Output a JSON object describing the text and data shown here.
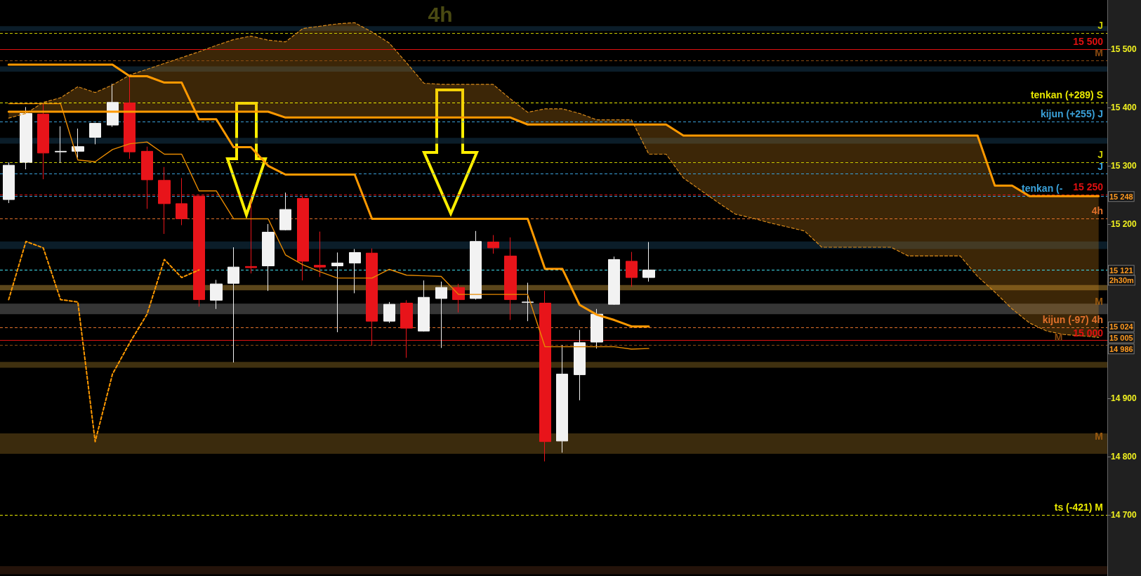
{
  "chart_data": {
    "type": "candlestick",
    "title": "4h",
    "categories": [
      null,
      null,
      null,
      null,
      null,
      null,
      null,
      null,
      null,
      null,
      null,
      null,
      null,
      null,
      null,
      null,
      null,
      null,
      null,
      null,
      null,
      null,
      null,
      null,
      null,
      null,
      null,
      null,
      null,
      null,
      null,
      null,
      null,
      null,
      null,
      null,
      null,
      null,
      null,
      null,
      null,
      null,
      null,
      null,
      null,
      null,
      null,
      null,
      null,
      null,
      null,
      null,
      null,
      null,
      null,
      null,
      null,
      null,
      null,
      null,
      null,
      null,
      null,
      null
    ],
    "ohlc": [
      [
        15242,
        15306,
        15236,
        15301
      ],
      [
        15306,
        15401,
        15294,
        15390
      ],
      [
        15389,
        15407,
        15277,
        15322
      ],
      [
        15324,
        15368,
        15305,
        15325
      ],
      [
        15325,
        15364,
        15314,
        15333
      ],
      [
        15349,
        15374,
        15337,
        15373
      ],
      [
        15370,
        15441,
        15367,
        15409
      ],
      [
        15408,
        15453,
        15312,
        15324
      ],
      [
        15325,
        15333,
        15226,
        15276
      ],
      [
        15275,
        15298,
        15183,
        15235
      ],
      [
        15235,
        15279,
        15198,
        15209
      ],
      [
        15248,
        15248,
        15058,
        15070
      ],
      [
        15069,
        15104,
        15054,
        15097
      ],
      [
        15098,
        15160,
        14962,
        15126
      ],
      [
        15127,
        15246,
        15115,
        15125
      ],
      [
        15128,
        15200,
        15085,
        15186
      ],
      [
        15190,
        15254,
        15189,
        15225
      ],
      [
        15244,
        15248,
        15103,
        15136
      ],
      [
        15129,
        15187,
        15109,
        15126
      ],
      [
        15128,
        15151,
        15014,
        15133
      ],
      [
        15133,
        15157,
        15081,
        15151
      ],
      [
        15150,
        15158,
        14991,
        15033
      ],
      [
        15033,
        15066,
        15030,
        15062
      ],
      [
        15064,
        15069,
        14970,
        15021
      ],
      [
        15016,
        15103,
        15015,
        15074
      ],
      [
        15072,
        15101,
        14987,
        15091
      ],
      [
        15091,
        15097,
        15048,
        15070
      ],
      [
        15072,
        15188,
        15070,
        15170
      ],
      [
        15169,
        15181,
        15149,
        15159
      ],
      [
        15145,
        15177,
        15035,
        15070
      ],
      [
        15065,
        15099,
        15033,
        15066
      ],
      [
        15064,
        15085,
        14792,
        14826
      ],
      [
        14827,
        14992,
        14807,
        14942
      ],
      [
        14941,
        15018,
        14897,
        14996
      ],
      [
        14997,
        15054,
        14986,
        15045
      ],
      [
        15062,
        15144,
        15061,
        15139
      ],
      [
        15136,
        15152,
        15092,
        15108
      ],
      [
        15108,
        15169,
        15101,
        15121
      ],
      null,
      null,
      null,
      null,
      null,
      null,
      null,
      null,
      null,
      null,
      null,
      null,
      null,
      null,
      null,
      null,
      null,
      null,
      null,
      null,
      null,
      null,
      null,
      null,
      null,
      null
    ],
    "colors": [
      "#f2f2f2",
      "#f2f2f2",
      "#e8141a",
      "#f2f2f2",
      "#f2f2f2",
      "#f2f2f2",
      "#f2f2f2",
      "#e8141a",
      "#e8141a",
      "#e8141a",
      "#e8141a",
      "#e8141a",
      "#f2f2f2",
      "#f2f2f2",
      "#e8141a",
      "#f2f2f2",
      "#f2f2f2",
      "#e8141a",
      "#e8141a",
      "#f2f2f2",
      "#f2f2f2",
      "#e8141a",
      "#f2f2f2",
      "#e8141a",
      "#f2f2f2",
      "#f2f2f2",
      "#e8141a",
      "#f2f2f2",
      "#e8141a",
      "#e8141a",
      "#f2f2f2",
      "#e8141a",
      "#f2f2f2",
      "#f2f2f2",
      "#f2f2f2",
      "#f2f2f2",
      "#e8141a",
      "#f2f2f2",
      null,
      null,
      null,
      null,
      null,
      null,
      null,
      null,
      null,
      null,
      null,
      null,
      null,
      null,
      null,
      null,
      null,
      null,
      null,
      null,
      null,
      null,
      null,
      null,
      null,
      null
    ],
    "series": [
      {
        "type": "line",
        "color": "#ff9900",
        "values": [
          15474,
          15474,
          15474,
          15474,
          15474,
          15474,
          15474,
          15454,
          15454,
          15443,
          15443,
          15380,
          15380,
          15332,
          15332,
          15300,
          15285,
          15285,
          15285,
          15285,
          15285,
          15209,
          15209,
          15209,
          15209,
          15209,
          15209,
          15209,
          15209,
          15209,
          15209,
          15123,
          15123,
          15061,
          15044,
          15035,
          15024,
          15024,
          null,
          null,
          null,
          null,
          null,
          null,
          null,
          null,
          null,
          null,
          null,
          null,
          null,
          null,
          null,
          null,
          null,
          null,
          null,
          null,
          null,
          null,
          null,
          null,
          null,
          null
        ]
      },
      {
        "type": "line",
        "color": "#e88a00",
        "values": [
          15407,
          15407,
          15407,
          15407,
          15310,
          15307,
          15328,
          15338,
          15341,
          15320,
          15320,
          15257,
          15257,
          15209,
          15209,
          15209,
          15147,
          15130,
          15118,
          15107,
          15107,
          15107,
          15122,
          15112,
          15111,
          15110,
          15079,
          15079,
          15079,
          15079,
          15079,
          14989,
          14989,
          14989,
          14989,
          14989,
          14985,
          14986,
          null,
          null,
          null,
          null,
          null,
          null,
          null,
          null,
          null,
          null,
          null,
          null,
          null,
          null,
          null,
          null,
          null,
          null,
          null,
          null,
          null,
          null,
          null,
          null,
          null,
          null
        ]
      },
      {
        "type": "line",
        "color": "#ff9900",
        "line_style": "dashed",
        "values": [
          15070,
          15170,
          15159,
          15070,
          15066,
          14826,
          14942,
          14996,
          15045,
          15139,
          15108,
          15121,
          null,
          null,
          null,
          null,
          null,
          null,
          null,
          null,
          null,
          null,
          null,
          null,
          null,
          null,
          null,
          null,
          null,
          null,
          null,
          null,
          null,
          null,
          null,
          null,
          null,
          null,
          null,
          null,
          null,
          null,
          null,
          null,
          null,
          null,
          null,
          null,
          null,
          null,
          null,
          null,
          null,
          null,
          null,
          null,
          null,
          null,
          null,
          null,
          null,
          null,
          null,
          null
        ]
      },
      {
        "type": "line",
        "color": "#d98a1a",
        "line_style": "dashed",
        "values": [
          15382,
          15390,
          15409,
          15417,
          15436,
          15426,
          15439,
          15456,
          15466,
          15476,
          15486,
          15496,
          15507,
          15517,
          15523,
          15516,
          15513,
          15536,
          15540,
          15544,
          15546,
          15530,
          15511,
          15477,
          15442,
          15440,
          15440,
          15440,
          15440,
          15415,
          15392,
          15398,
          15398,
          15390,
          15379,
          15379,
          15379,
          15320,
          15320,
          15279,
          15258,
          15237,
          15217,
          15210,
          15202,
          15195,
          15188,
          15160,
          15160,
          15160,
          15160,
          15160,
          15145,
          15145,
          15145,
          15145,
          15110,
          15083,
          15054,
          15030,
          15016,
          15010,
          15008,
          15005
        ],
        "upper": [
          15382,
          15390,
          15409,
          15417,
          15436,
          15426,
          15439,
          15456,
          15466,
          15476,
          15486,
          15496,
          15507,
          15517,
          15523,
          15516,
          15513,
          15536,
          15540,
          15544,
          15546,
          15530,
          15511,
          15477,
          15442,
          15440,
          15440,
          15440,
          15440,
          15415,
          15392,
          15398,
          15398,
          15390,
          15379,
          15379,
          15379,
          15320,
          15320,
          15279,
          15258,
          15237,
          15217,
          15210,
          15202,
          15195,
          15188,
          15160,
          15160,
          15160,
          15160,
          15160,
          15145,
          15145,
          15145,
          15145,
          15110,
          15083,
          15054,
          15030,
          15016,
          15010,
          15008,
          15005
        ],
        "lower": [
          15393,
          15393,
          15393,
          15393,
          15393,
          15393,
          15393,
          15393,
          15393,
          15393,
          15393,
          15393,
          15393,
          15393,
          15393,
          15393,
          15383,
          15383,
          15383,
          15383,
          15383,
          15383,
          15383,
          15383,
          15383,
          15383,
          15383,
          15383,
          15383,
          15383,
          15371,
          15371,
          15371,
          15371,
          15371,
          15371,
          15371,
          15371,
          15371,
          15352,
          15352,
          15352,
          15352,
          15352,
          15352,
          15352,
          15352,
          15352,
          15352,
          15352,
          15352,
          15352,
          15352,
          15352,
          15352,
          15352,
          15352,
          15266,
          15266,
          15248,
          15248,
          15248,
          15248,
          15248
        ]
      },
      {
        "type": "line",
        "color": "#ff9900",
        "values": [
          15393,
          15393,
          15393,
          15393,
          15393,
          15393,
          15393,
          15393,
          15393,
          15393,
          15393,
          15393,
          15393,
          15393,
          15393,
          15393,
          15383,
          15383,
          15383,
          15383,
          15383,
          15383,
          15383,
          15383,
          15383,
          15383,
          15383,
          15383,
          15383,
          15383,
          15371,
          15371,
          15371,
          15371,
          15371,
          15371,
          15371,
          15371,
          15371,
          15352,
          15352,
          15352,
          15352,
          15352,
          15352,
          15352,
          15352,
          15352,
          15352,
          15352,
          15352,
          15352,
          15352,
          15352,
          15352,
          15352,
          15352,
          15266,
          15266,
          15248,
          15248,
          15248,
          15248,
          15248
        ]
      }
    ],
    "ref_lines": [
      {
        "axis": "y",
        "value": 15528,
        "label": "J",
        "color": "#c8c800",
        "line_style": "dashed"
      },
      {
        "axis": "y",
        "value": 15500,
        "label": "15 500",
        "color": "#e01010",
        "line_style": "solid"
      },
      {
        "axis": "y",
        "value": 15481,
        "label": "M",
        "color": "#8a4a10",
        "line_style": "dashed"
      },
      {
        "axis": "y",
        "value": 15409,
        "label": "tenkan (+289) S",
        "color": "#e8e800",
        "line_style": "dashed"
      },
      {
        "axis": "y",
        "value": 15376,
        "label": "kijun (+255) J",
        "color": "#3aa0d8",
        "line_style": "dashed"
      },
      {
        "axis": "y",
        "value": 15306,
        "label": "J",
        "color": "#c8c800",
        "line_style": "dashed"
      },
      {
        "axis": "y",
        "value": 15286,
        "label": "J",
        "color": "#3aa0d8",
        "line_style": "dashed"
      },
      {
        "axis": "y",
        "value": 15250,
        "label": "15 250",
        "color": "#e01010",
        "line_style": "dashed"
      },
      {
        "axis": "y",
        "value": 15248,
        "label": "tenkan (-",
        "color": "#3aa0d8",
        "line_style": "dashed"
      },
      {
        "axis": "y",
        "value": 15209,
        "label": "4h",
        "color": "#e0702a",
        "line_style": "dashed"
      },
      {
        "axis": "y",
        "value": 15121,
        "color": "#40e0f0",
        "line_style": "dashed"
      },
      {
        "axis": "y",
        "value": 15022,
        "label": "kijun (-97) 4h",
        "color": "#e0702a",
        "line_style": "dashed"
      },
      {
        "axis": "y",
        "value": 15000,
        "label": "15 000",
        "color": "#e01010",
        "line_style": "solid"
      },
      {
        "axis": "y",
        "value": 14992,
        "label": "M",
        "color": "#8a4a10",
        "line_style": "dashed"
      },
      {
        "axis": "y",
        "value": 14700,
        "label": "ts (-421) M",
        "color": "#e8e800",
        "line_style": "dashed"
      }
    ],
    "bands": [
      {
        "axis": "y",
        "from": 15532,
        "to": 15540,
        "color": "#0d2230"
      },
      {
        "axis": "y",
        "from": 15462,
        "to": 15471,
        "color": "#0d2230"
      },
      {
        "axis": "y",
        "from": 15338,
        "to": 15348,
        "color": "#0d2230"
      },
      {
        "axis": "y",
        "from": 15157,
        "to": 15170,
        "color": "#0d2230"
      },
      {
        "axis": "y",
        "from": 15086,
        "to": 15095,
        "color": "#6b5220"
      },
      {
        "axis": "y",
        "from": 15045,
        "to": 15063,
        "label": "M",
        "color": "#404040"
      },
      {
        "axis": "y",
        "from": 14953,
        "to": 14963,
        "color": "#4a3812"
      },
      {
        "axis": "y",
        "from": 14805,
        "to": 14840,
        "label": "M",
        "color": "#45320f"
      },
      {
        "axis": "y",
        "from": 14598,
        "to": 14612,
        "color": "#2a160c"
      }
    ],
    "annotations": [
      {
        "text": "15 248",
        "y": 15248
      },
      {
        "text": "15 121",
        "y": 15121
      },
      {
        "text": "2h30m",
        "y": 15104
      },
      {
        "text": "15 024",
        "y": 15024
      },
      {
        "text": "15 005",
        "y": 15005
      },
      {
        "text": "14 986",
        "y": 14986
      }
    ],
    "ylim": [
      14595,
      15585
    ],
    "yticks": [
      {
        "value": 14700,
        "label": "14 700"
      },
      {
        "value": 14800,
        "label": "14 800"
      },
      {
        "value": 14900,
        "label": "14 900"
      },
      {
        "value": 15000,
        "label": null
      },
      {
        "value": 15100,
        "label": null
      },
      {
        "value": 15200,
        "label": "15 200"
      },
      {
        "value": 15300,
        "label": "15 300"
      },
      {
        "value": 15400,
        "label": "15 400"
      },
      {
        "value": 15500,
        "label": "15 500"
      }
    ],
    "tick_labels": "y"
  }
}
